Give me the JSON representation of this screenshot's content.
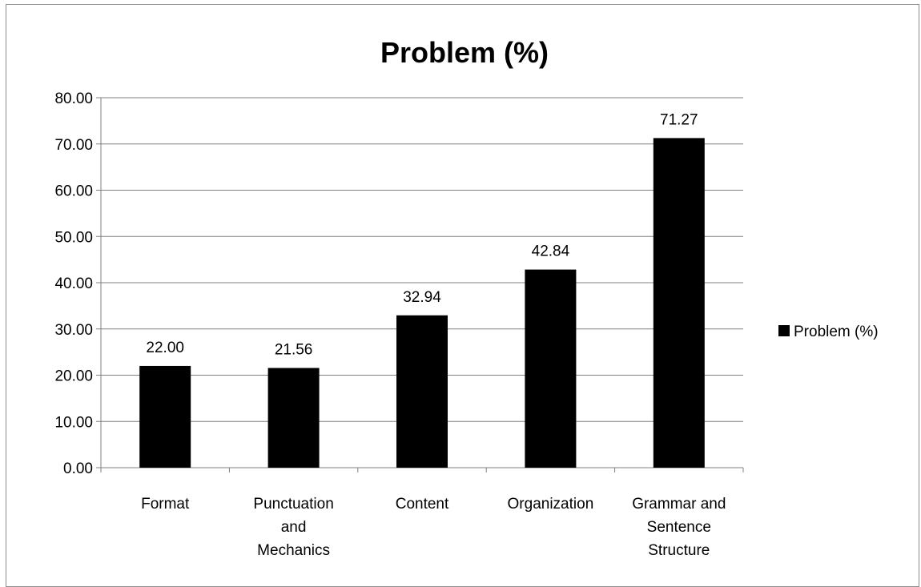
{
  "chart_data": {
    "type": "bar",
    "title": "Problem (%)",
    "xlabel": "",
    "ylabel": "",
    "categories": [
      [
        "Format"
      ],
      [
        "Punctuation",
        "and",
        "Mechanics"
      ],
      [
        "Content"
      ],
      [
        "Organization"
      ],
      [
        "Grammar and",
        "Sentence",
        "Structure"
      ]
    ],
    "series": [
      {
        "name": "Problem (%)",
        "values": [
          22.0,
          21.56,
          32.94,
          42.84,
          71.27
        ],
        "labels": [
          "22.00",
          "21.56",
          "32.94",
          "42.84",
          "71.27"
        ],
        "color": "#000000"
      }
    ],
    "ylim": [
      0,
      80
    ],
    "yticks": [
      0,
      10,
      20,
      30,
      40,
      50,
      60,
      70,
      80
    ],
    "ytick_labels": [
      "0.00",
      "10.00",
      "20.00",
      "30.00",
      "40.00",
      "50.00",
      "60.00",
      "70.00",
      "80.00"
    ],
    "grid": true,
    "legend_position": "right"
  },
  "colors": {
    "bar": "#000000",
    "grid": "#808080",
    "border": "#8c8c8c"
  }
}
